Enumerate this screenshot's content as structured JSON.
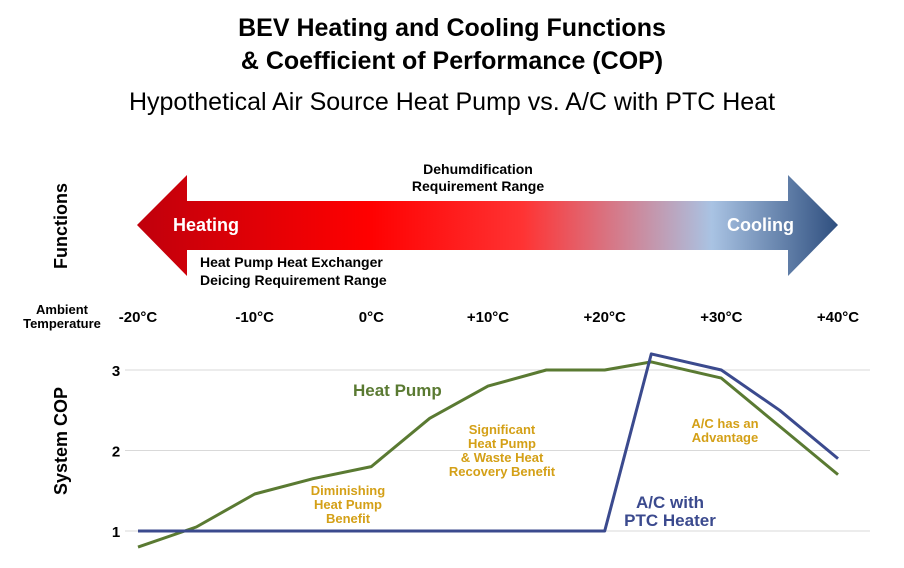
{
  "header": {
    "title_line1": "BEV Heating and Cooling Functions",
    "title_line2": "& Coefficient of Performance (COP)",
    "subtitle": "Hypothetical Air Source Heat Pump vs. A/C with PTC Heat"
  },
  "functions_panel": {
    "label": "Functions",
    "heating_label": "Heating",
    "cooling_label": "Cooling",
    "dehumid_line1": "Dehumdification",
    "dehumid_line2": "Requirement Range",
    "deicing_line1": "Heat Pump Heat Exchanger",
    "deicing_line2": "Deicing Requirement Range",
    "arrow_colors": [
      "#c0000c",
      "#ff0000",
      "#ff3333",
      "#a9c3e3",
      "#2f4f7f"
    ]
  },
  "chart_data": {
    "type": "line",
    "title": "",
    "xlabel_line1": "Ambient",
    "xlabel_line2": "Temperature",
    "ylabel": "System COP",
    "x_ticks": [
      -20,
      -10,
      0,
      10,
      20,
      30,
      40
    ],
    "x_tick_labels": [
      "-20°C",
      "-10°C",
      "0°C",
      "+10°C",
      "+20°C",
      "+30°C",
      "+40°C"
    ],
    "y_ticks": [
      1,
      2,
      3
    ],
    "xlim": [
      -20,
      40
    ],
    "ylim": [
      0.8,
      3.2
    ],
    "grid": true,
    "series": [
      {
        "name": "Heat Pump",
        "color": "#5a7a32",
        "x": [
          -20,
          -15,
          -10,
          -5,
          0,
          5,
          10,
          15,
          20,
          24,
          30,
          35,
          40
        ],
        "y": [
          0.8,
          1.05,
          1.46,
          1.65,
          1.8,
          2.4,
          2.8,
          3.0,
          3.0,
          3.1,
          2.9,
          2.3,
          1.7
        ]
      },
      {
        "name": "A/C with PTC Heater",
        "name_line1": "A/C with",
        "name_line2": "PTC Heater",
        "color": "#3b4a8e",
        "x": [
          -20,
          20,
          24,
          30,
          35,
          40
        ],
        "y": [
          1.0,
          1.0,
          3.2,
          3.0,
          2.5,
          1.9
        ]
      }
    ],
    "annotations": {
      "diminishing": [
        "Diminishing",
        "Heat Pump",
        "Benefit"
      ],
      "significant": [
        "Significant",
        "Heat Pump",
        "& Waste Heat",
        "Recovery Benefit"
      ],
      "advantage": [
        "A/C has an",
        "Advantage"
      ],
      "color": "#d4a017"
    }
  }
}
